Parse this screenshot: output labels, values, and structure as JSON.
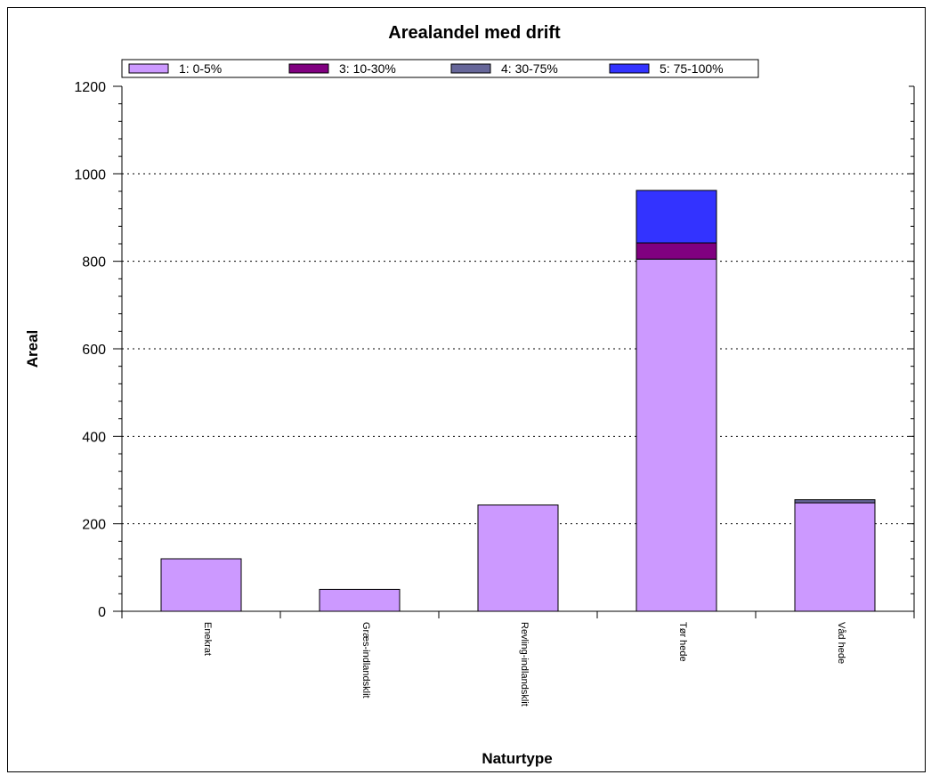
{
  "chart_data": {
    "type": "bar",
    "stacked": true,
    "title": "Arealandel med drift",
    "xlabel": "Naturtype",
    "ylabel": "Areal",
    "ylim": [
      0,
      1200
    ],
    "yticks": [
      "0",
      "200",
      "400",
      "600",
      "800",
      "1000",
      "1200"
    ],
    "grid": "horizontal dotted",
    "legend_position": "top",
    "categories": [
      "Enekrat",
      "Græs-indlandsklit",
      "Revling-indlandsklit",
      "Tør hede",
      "Våd hede"
    ],
    "series": [
      {
        "name": "1: 0-5%",
        "color": "#cc99ff",
        "values": [
          120,
          50,
          243,
          805,
          248
        ]
      },
      {
        "name": "3: 10-30%",
        "color": "#800080",
        "values": [
          0,
          0,
          0,
          37,
          0
        ]
      },
      {
        "name": "4: 30-75%",
        "color": "#666699",
        "values": [
          0,
          0,
          0,
          0,
          7
        ]
      },
      {
        "name": "5: 75-100%",
        "color": "#3333ff",
        "values": [
          0,
          0,
          0,
          120,
          0
        ]
      }
    ]
  }
}
